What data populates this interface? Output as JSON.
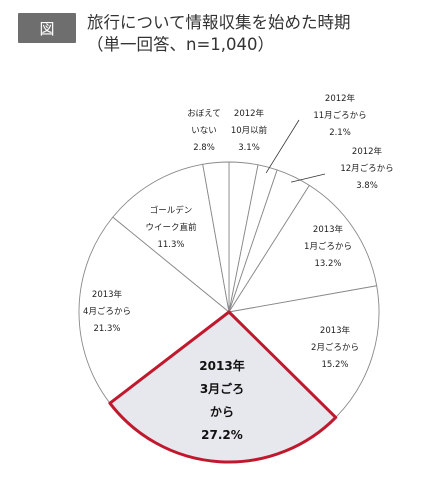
{
  "header": {
    "badge": "図",
    "title_line1": "旅行について情報収集を始めた時期",
    "title_line2": "（単一回答、n=1,040）"
  },
  "chart_data": {
    "type": "pie",
    "title": "旅行について情報収集を始めた時期（単一回答、n=1,040）",
    "direction": "clockwise",
    "start": "top",
    "highlight": "2013年3月ごろから",
    "highlight_color": "#c0192e",
    "slice_fill": "#ffffff",
    "highlight_fill": "#e7e7ee",
    "slices": [
      {
        "label": "2012年10月以前",
        "lines": [
          "2012年",
          "10月以前",
          "3.1%"
        ],
        "value": 3.1
      },
      {
        "label": "2012年11月ごろから",
        "lines": [
          "2012年",
          "11月ごろから",
          "2.1%"
        ],
        "value": 2.1
      },
      {
        "label": "2012年12月ごろから",
        "lines": [
          "2012年",
          "12月ごろから",
          "3.8%"
        ],
        "value": 3.8
      },
      {
        "label": "2013年1月ごろから",
        "lines": [
          "2013年",
          "1月ごろから",
          "13.2%"
        ],
        "value": 13.2
      },
      {
        "label": "2013年2月ごろから",
        "lines": [
          "2013年",
          "2月ごろから",
          "15.2%"
        ],
        "value": 15.2
      },
      {
        "label": "2013年3月ごろから",
        "lines": [
          "2013年",
          "3月ごろ",
          "から",
          "27.2%"
        ],
        "value": 27.2
      },
      {
        "label": "2013年4月ごろから",
        "lines": [
          "2013年",
          "4月ごろから",
          "21.3%"
        ],
        "value": 21.3
      },
      {
        "label": "ゴールデンウイーク直前",
        "lines": [
          "ゴールデン",
          "ウイーク直前",
          "11.3%"
        ],
        "value": 11.3
      },
      {
        "label": "おぼえていない",
        "lines": [
          "おぼえて",
          "いない",
          "2.8%"
        ],
        "value": 2.8
      }
    ]
  }
}
